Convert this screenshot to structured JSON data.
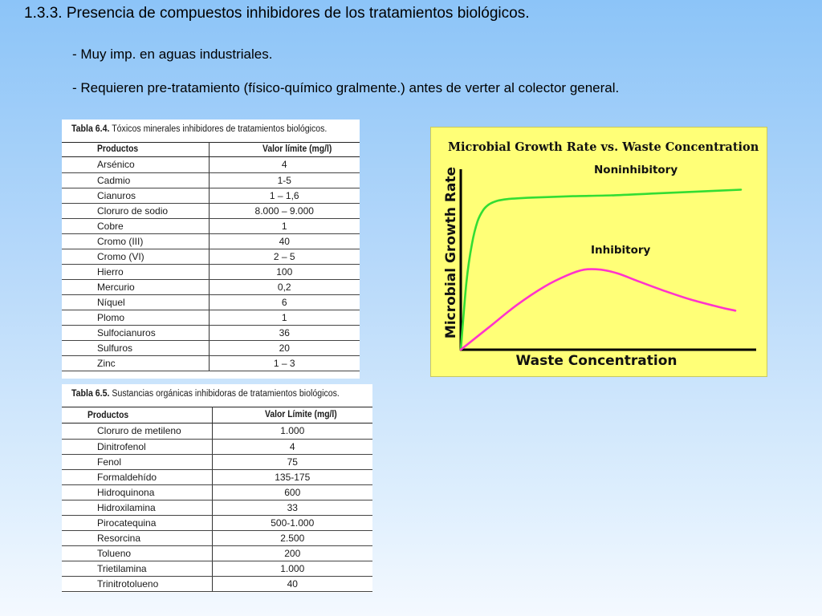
{
  "slide": {
    "title": "1.3.3. Presencia de compuestos inhibidores de los tratamientos biológicos.",
    "bullets": [
      "- Muy imp. en aguas industriales.",
      "- Requieren pre-tratamiento (físico-químico gralmente.) antes de verter al colector general."
    ]
  },
  "table1": {
    "label": "Tabla 6.4.",
    "caption": "Tóxicos minerales inhibidores de tratamientos biológicos.",
    "headers": [
      "Productos",
      "Valor límite (mg/l)"
    ],
    "rows": [
      [
        "Arsénico",
        "4"
      ],
      [
        "Cadmio",
        "1-5"
      ],
      [
        "Cianuros",
        "1 – 1,6"
      ],
      [
        "Cloruro de sodio",
        "8.000 – 9.000"
      ],
      [
        "Cobre",
        "1"
      ],
      [
        "Cromo (III)",
        "40"
      ],
      [
        "Cromo (VI)",
        "2 – 5"
      ],
      [
        "Hierro",
        "100"
      ],
      [
        "Mercurio",
        "0,2"
      ],
      [
        "Níquel",
        "6"
      ],
      [
        "Plomo",
        "1"
      ],
      [
        "Sulfocianuros",
        "36"
      ],
      [
        "Sulfuros",
        "20"
      ],
      [
        "Zinc",
        "1 – 3"
      ]
    ]
  },
  "table2": {
    "label": "Tabla 6.5.",
    "caption": "Sustancias orgánicas inhibidoras de tratamientos biológicos.",
    "headers": [
      "Productos",
      "Valor Límite (mg/l)"
    ],
    "rows": [
      [
        "Cloruro de metileno",
        "1.000"
      ],
      [
        "Dinitrofenol",
        "4"
      ],
      [
        "Fenol",
        "75"
      ],
      [
        "Formaldehído",
        "135-175"
      ],
      [
        "Hidroquinona",
        "600"
      ],
      [
        "Hidroxilamina",
        "33"
      ],
      [
        "Pirocatequina",
        "500-1.000"
      ],
      [
        "Resorcina",
        "2.500"
      ],
      [
        "Tolueno",
        "200"
      ],
      [
        "Trietilamina",
        "1.000"
      ],
      [
        "Trinitrotolueno",
        "40"
      ]
    ]
  },
  "chart_data": {
    "type": "line",
    "title": "Microbial Growth Rate vs. Waste Concentration",
    "xlabel": "Waste Concentration",
    "ylabel": "Microbial Growth Rate",
    "xlim": [
      0,
      1
    ],
    "ylim": [
      0,
      1
    ],
    "grid": false,
    "background": "#ffff77",
    "series": [
      {
        "name": "Noninhibitory",
        "color": "#33dd33",
        "x": [
          0,
          0.02,
          0.04,
          0.06,
          0.08,
          0.1,
          0.13,
          0.17,
          0.22,
          0.3,
          0.4,
          0.55,
          0.7,
          0.85,
          1.0
        ],
        "y": [
          0,
          0.36,
          0.57,
          0.69,
          0.75,
          0.78,
          0.8,
          0.81,
          0.815,
          0.82,
          0.825,
          0.83,
          0.84,
          0.85,
          0.86
        ]
      },
      {
        "name": "Inhibitory",
        "color": "#ff33cc",
        "x": [
          0,
          0.1,
          0.2,
          0.3,
          0.38,
          0.44,
          0.5,
          0.56,
          0.63,
          0.72,
          0.82,
          0.92,
          0.98
        ],
        "y": [
          0,
          0.12,
          0.24,
          0.34,
          0.4,
          0.43,
          0.43,
          0.41,
          0.37,
          0.32,
          0.27,
          0.23,
          0.21
        ]
      }
    ]
  }
}
